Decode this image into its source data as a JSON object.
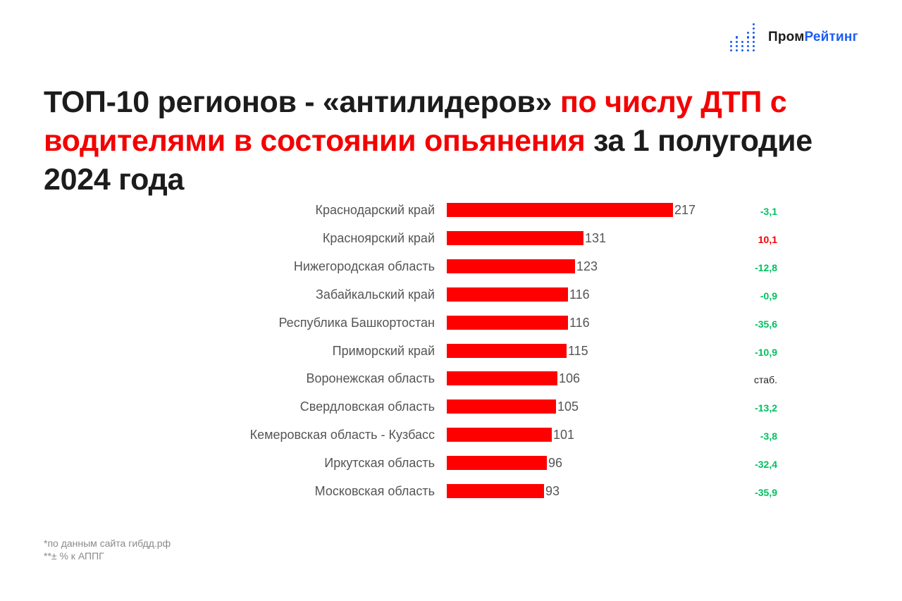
{
  "logo": {
    "icon": "bar-dots-icon",
    "text_part1": "Пром",
    "text_part2": "Рейтинг",
    "brand_color": "#1a5cf5"
  },
  "title": {
    "part1": "ТОП-10 регионов - «антилидеров» ",
    "part2_red": "по числу ДТП с водителями в состоянии опьянения",
    "part3": " за 1 полугодие 2024 года"
  },
  "chart_data": {
    "type": "bar",
    "orientation": "horizontal",
    "title": "ТОП-10 регионов - «антилидеров» по числу ДТП с водителями в состоянии опьянения за 1 полугодие 2024 года",
    "xlabel": "",
    "ylabel": "",
    "grid": false,
    "legend": null,
    "categories": [
      "Краснодарский край",
      "Красноярский край",
      "Нижегородская область",
      "Забайкальский край",
      "Республика Башкортостан",
      "Приморский край",
      "Воронежская область",
      "Свердловская область",
      "Кемеровская область - Кузбасс",
      "Иркутская область",
      "Московская область"
    ],
    "series": [
      {
        "name": "Число ДТП",
        "color": "#ff0000",
        "values": [
          217,
          131,
          123,
          116,
          116,
          115,
          106,
          105,
          101,
          96,
          93
        ]
      },
      {
        "name": "± % к АППГ",
        "values": [
          "-3,1",
          "10,1",
          "-12,8",
          "-0,9",
          "-35,6",
          "-10,9",
          "стаб.",
          "-13,2",
          "-3,8",
          "-32,4",
          "-35,9"
        ]
      }
    ],
    "change_colors": {
      "negative": "#00c060",
      "positive": "#f40000",
      "stable": "#222222"
    }
  },
  "rows": [
    {
      "label": "Краснодарский край",
      "value": "217",
      "change": "-3,1",
      "kind": "neg"
    },
    {
      "label": "Красноярский край",
      "value": "131",
      "change": "10,1",
      "kind": "pos"
    },
    {
      "label": "Нижегородская область",
      "value": "123",
      "change": "-12,8",
      "kind": "neg"
    },
    {
      "label": "Забайкальский край",
      "value": "116",
      "change": "-0,9",
      "kind": "neg"
    },
    {
      "label": "Республика Башкортостан",
      "value": "116",
      "change": "-35,6",
      "kind": "neg"
    },
    {
      "label": "Приморский край",
      "value": "115",
      "change": "-10,9",
      "kind": "neg"
    },
    {
      "label": "Воронежская область",
      "value": "106",
      "change": "стаб.",
      "kind": "stable"
    },
    {
      "label": "Свердловская область",
      "value": "105",
      "change": "-13,2",
      "kind": "neg"
    },
    {
      "label": "Кемеровская область - Кузбасс",
      "value": "101",
      "change": "-3,8",
      "kind": "neg"
    },
    {
      "label": "Иркутская область",
      "value": "96",
      "change": "-32,4",
      "kind": "neg"
    },
    {
      "label": "Московская область",
      "value": "93",
      "change": "-35,9",
      "kind": "neg"
    }
  ],
  "footnotes": {
    "source": "*по данным сайта гибдд.рф",
    "note": "**± % к АППГ"
  }
}
